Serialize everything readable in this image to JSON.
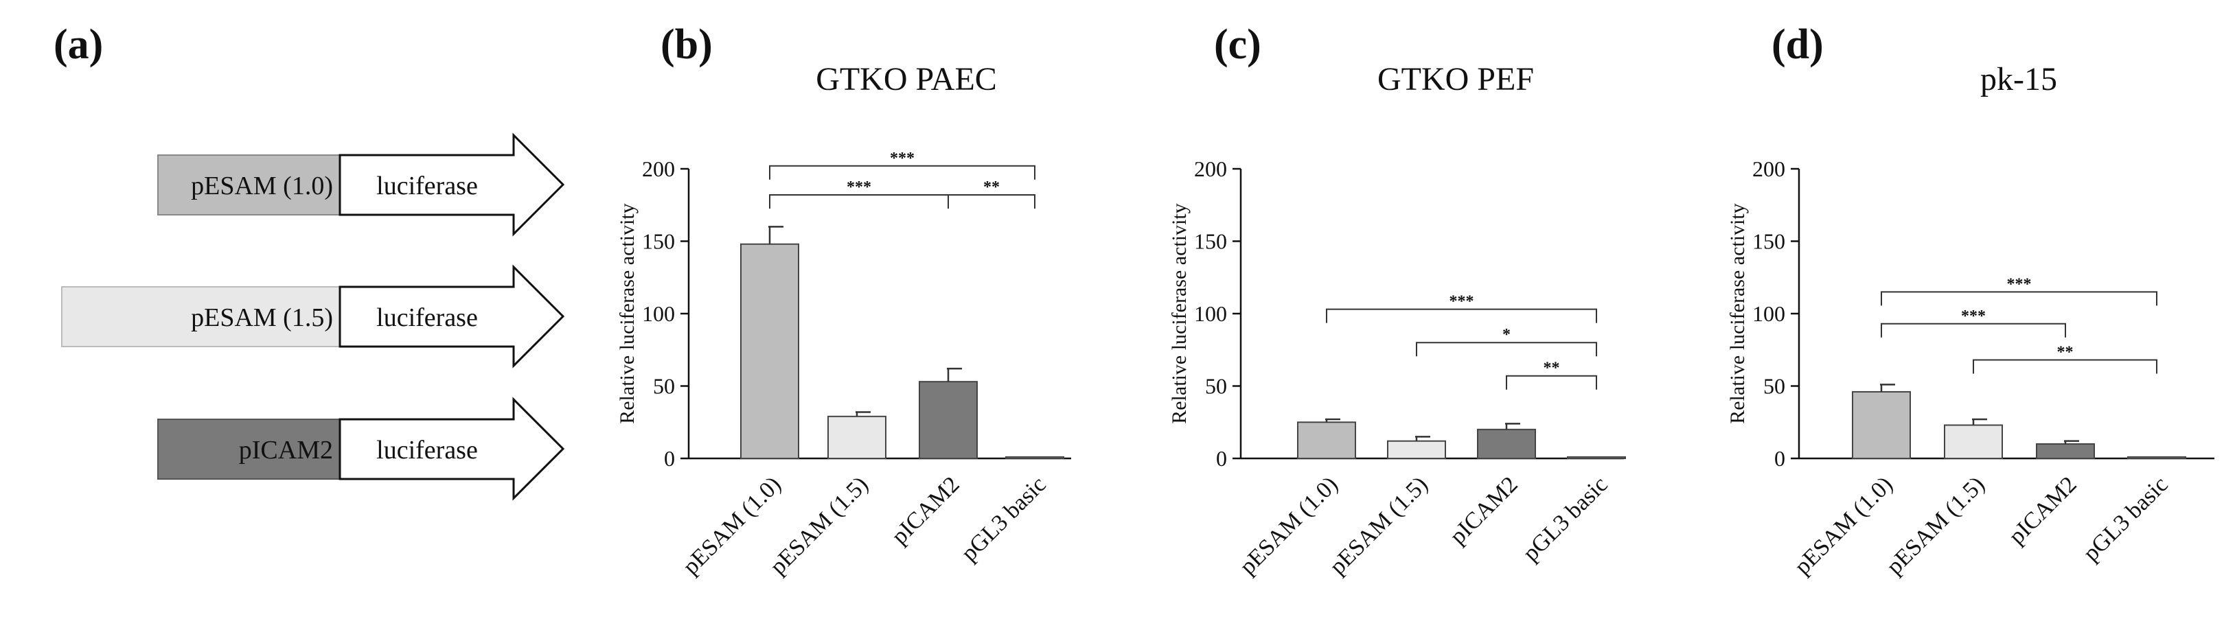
{
  "panels": [
    {
      "letter": "(a)"
    },
    {
      "letter": "(b)",
      "title": "GTKO PAEC"
    },
    {
      "letter": "(c)",
      "title": "GTKO PEF"
    },
    {
      "letter": "(d)",
      "title": "pk-15"
    }
  ],
  "constructs": [
    {
      "promoter": "pESAM (1.0)",
      "reporter": "luciferase",
      "color": "#bdbdbd"
    },
    {
      "promoter": "pESAM (1.5)",
      "reporter": "luciferase",
      "color": "#e8e8e8"
    },
    {
      "promoter": "pICAM2",
      "reporter": "luciferase",
      "color": "#7a7a7a"
    }
  ],
  "chart_data": [
    {
      "type": "bar",
      "title": "GTKO PAEC",
      "ylabel": "Relative luciferase activity",
      "ylim": [
        0,
        200
      ],
      "yticks": [
        0,
        50,
        100,
        150,
        200
      ],
      "categories": [
        "pESAM (1.0)",
        "pESAM (1.5)",
        "pICAM2",
        "pGL3 basic"
      ],
      "values": [
        148,
        29,
        53,
        1
      ],
      "errors": [
        12,
        3,
        9,
        0
      ],
      "colors": [
        "#bdbdbd",
        "#e8e8e8",
        "#7a7a7a",
        "#ffffff"
      ],
      "significance": [
        {
          "from": 0,
          "to": 3,
          "label": "***",
          "y": 202
        },
        {
          "from": 0,
          "to": 2,
          "label": "***",
          "y": 182
        },
        {
          "from": 2,
          "to": 3,
          "label": "**",
          "y": 182
        }
      ]
    },
    {
      "type": "bar",
      "title": "GTKO PEF",
      "ylabel": "Relative luciferase activity",
      "ylim": [
        0,
        200
      ],
      "yticks": [
        0,
        50,
        100,
        150,
        200
      ],
      "categories": [
        "pESAM (1.0)",
        "pESAM (1.5)",
        "pICAM2",
        "pGL3 basic"
      ],
      "values": [
        25,
        12,
        20,
        1
      ],
      "errors": [
        2,
        3,
        4,
        0
      ],
      "colors": [
        "#bdbdbd",
        "#e8e8e8",
        "#7a7a7a",
        "#ffffff"
      ],
      "significance": [
        {
          "from": 0,
          "to": 3,
          "label": "***",
          "y": 103
        },
        {
          "from": 1,
          "to": 3,
          "label": "*",
          "y": 80
        },
        {
          "from": 2,
          "to": 3,
          "label": "**",
          "y": 57
        }
      ]
    },
    {
      "type": "bar",
      "title": "pk-15",
      "ylabel": "Relative luciferase activity",
      "ylim": [
        0,
        200
      ],
      "yticks": [
        0,
        50,
        100,
        150,
        200
      ],
      "categories": [
        "pESAM (1.0)",
        "pESAM (1.5)",
        "pICAM2",
        "pGL3 basic"
      ],
      "values": [
        46,
        23,
        10,
        1
      ],
      "errors": [
        5,
        4,
        2,
        0
      ],
      "colors": [
        "#bdbdbd",
        "#e8e8e8",
        "#7a7a7a",
        "#ffffff"
      ],
      "significance": [
        {
          "from": 0,
          "to": 3,
          "label": "***",
          "y": 115
        },
        {
          "from": 0,
          "to": 2,
          "label": "***",
          "y": 93
        },
        {
          "from": 1,
          "to": 3,
          "label": "**",
          "y": 68
        }
      ]
    }
  ]
}
